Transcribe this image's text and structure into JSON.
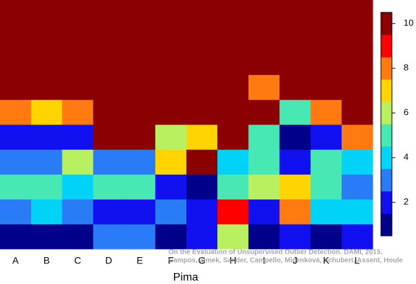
{
  "chart_data": {
    "type": "heatmap",
    "x_label": "Pima",
    "annotation": [
      "On the Evaluation of Unsupervised Outlier Detection. DAMI, 2015.",
      "Campos, Zimek, Sander, Campello, Micenková, Schubert, Assent, Houle"
    ],
    "categories": [
      "A",
      "B",
      "C",
      "D",
      "E",
      "F",
      "G",
      "H",
      "I",
      "J",
      "K",
      "L"
    ],
    "values": [
      [
        1,
        3,
        5,
        3,
        2,
        8,
        10,
        10,
        10,
        10
      ],
      [
        1,
        4,
        5,
        3,
        2,
        7,
        10,
        10,
        10,
        10
      ],
      [
        1,
        3,
        4,
        6,
        2,
        8,
        10,
        10,
        10,
        10
      ],
      [
        3,
        2,
        5,
        3,
        10,
        10,
        10,
        10,
        10,
        10
      ],
      [
        3,
        2,
        5,
        3,
        10,
        10,
        10,
        10,
        10,
        10
      ],
      [
        1,
        3,
        2,
        7,
        6,
        10,
        10,
        10,
        10,
        10
      ],
      [
        2,
        2,
        1,
        10,
        7,
        10,
        10,
        10,
        10,
        10
      ],
      [
        6,
        9,
        5,
        4,
        10,
        10,
        10,
        10,
        10,
        10
      ],
      [
        1,
        2,
        6,
        5,
        5,
        10,
        8,
        10,
        10,
        10
      ],
      [
        2,
        8,
        7,
        2,
        1,
        5,
        10,
        10,
        10,
        10
      ],
      [
        1,
        4,
        5,
        5,
        2,
        8,
        10,
        10,
        10,
        10
      ],
      [
        2,
        4,
        3,
        4,
        8,
        10,
        10,
        10,
        10,
        10
      ]
    ],
    "colors": [
      "#00008b",
      "#1010f0",
      "#2a7cf6",
      "#00d2f8",
      "#48e8b4",
      "#b8f060",
      "#ffd400",
      "#ff7a10",
      "#ff0000",
      "#8b0000"
    ],
    "zlim": [
      0.5,
      10.5
    ],
    "colorbar_ticks": [
      2,
      4,
      6,
      8,
      10
    ]
  }
}
